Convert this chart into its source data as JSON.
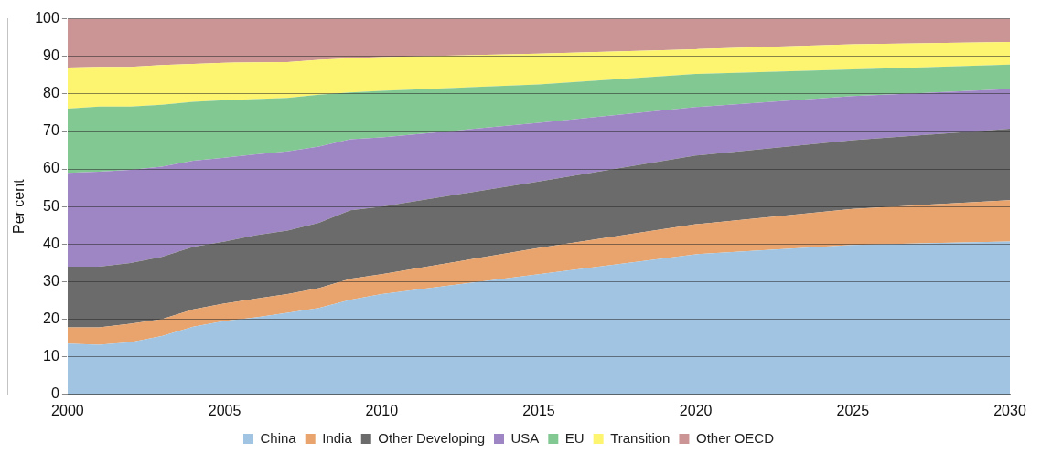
{
  "chart_data": {
    "type": "area",
    "stacked": true,
    "ylabel": "Per cent",
    "x": [
      2000,
      2001,
      2002,
      2003,
      2004,
      2005,
      2006,
      2007,
      2008,
      2009,
      2010,
      2015,
      2020,
      2025,
      2030
    ],
    "xlim": [
      2000,
      2030
    ],
    "xticks": [
      2000,
      2005,
      2010,
      2015,
      2020,
      2025,
      2030
    ],
    "ylim": [
      0,
      100
    ],
    "yticks": [
      0,
      10,
      20,
      30,
      40,
      50,
      60,
      70,
      80,
      90,
      100
    ],
    "grid": "y",
    "legend": "bottom",
    "series": [
      {
        "name": "China",
        "color": "#a0c4e2",
        "values": [
          13.5,
          13.2,
          13.9,
          15.5,
          18,
          19.5,
          20.5,
          21.7,
          23,
          25.2,
          26.7,
          32,
          37.3,
          39.8,
          40.7
        ]
      },
      {
        "name": "India",
        "color": "#e8a46c",
        "values": [
          4.3,
          4.6,
          4.9,
          4.5,
          4.6,
          4.7,
          5,
          5,
          5.3,
          5.6,
          5.3,
          7,
          8,
          9.6,
          11
        ]
      },
      {
        "name": "Other Developing",
        "color": "#6b6b6b",
        "values": [
          16.2,
          16.2,
          16.2,
          16.6,
          16.7,
          16.5,
          16.9,
          16.9,
          17.4,
          18.2,
          18,
          17.7,
          18.3,
          18.3,
          19
        ]
      },
      {
        "name": "USA",
        "color": "#9e86c4",
        "values": [
          25,
          25.3,
          24.8,
          24,
          22.9,
          22.3,
          21.5,
          21.1,
          20.3,
          18.9,
          18.4,
          15.6,
          12.9,
          11.7,
          10.6
        ]
      },
      {
        "name": "EU",
        "color": "#82c893",
        "values": [
          17.1,
          17.3,
          16.8,
          16.5,
          15.7,
          15.3,
          14.7,
          14.2,
          13.8,
          12.5,
          12.4,
          10.2,
          8.8,
          7.1,
          6.5
        ]
      },
      {
        "name": "Transition",
        "color": "#fdf46f",
        "values": [
          10.9,
          10.6,
          10.6,
          10.6,
          10.1,
          10,
          9.8,
          9.6,
          9.3,
          9.1,
          9,
          8.2,
          6.6,
          6.7,
          6
        ]
      },
      {
        "name": "Other OECD",
        "color": "#cc9595",
        "values": [
          13,
          12.8,
          12.8,
          12.3,
          12,
          11.7,
          11.6,
          11.5,
          10.9,
          10.5,
          10.2,
          9.3,
          8.1,
          6.8,
          6.2
        ]
      }
    ]
  }
}
